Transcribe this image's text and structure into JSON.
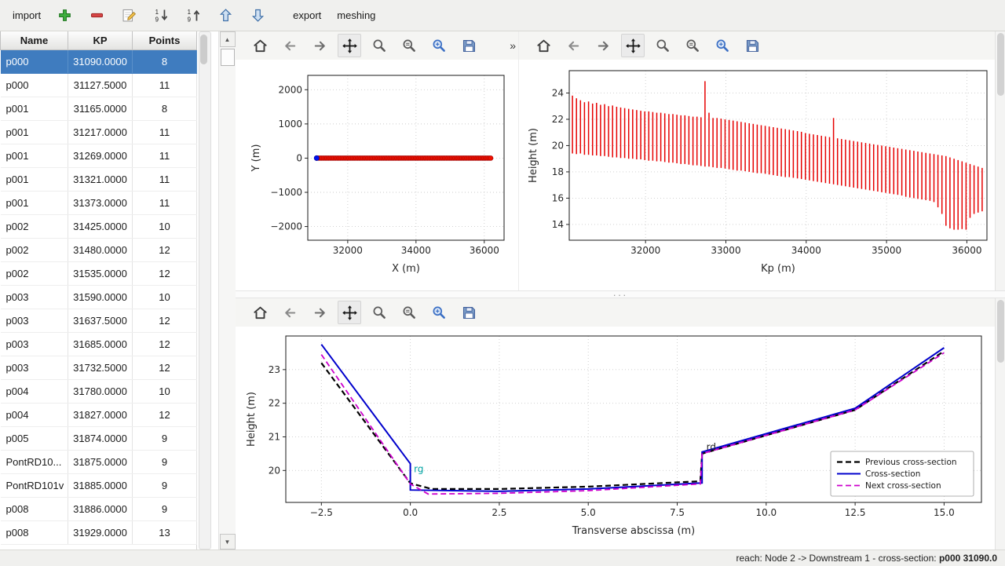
{
  "topbar": {
    "items": [
      {
        "id": "import",
        "type": "text",
        "label": "import"
      },
      {
        "id": "add",
        "type": "icon"
      },
      {
        "id": "remove",
        "type": "icon"
      },
      {
        "id": "edit",
        "type": "icon"
      },
      {
        "id": "sort-asc",
        "type": "icon"
      },
      {
        "id": "sort-desc",
        "type": "icon"
      },
      {
        "id": "move-up",
        "type": "icon"
      },
      {
        "id": "move-down",
        "type": "icon"
      },
      {
        "id": "export",
        "type": "text",
        "label": "export"
      },
      {
        "id": "meshing",
        "type": "text",
        "label": "meshing"
      }
    ]
  },
  "mpl_toolbar": {
    "icons": [
      "home",
      "back",
      "forward",
      "pan",
      "zoom",
      "subplots",
      "customize",
      "save"
    ],
    "overflow_label": "»"
  },
  "scrollbar": {
    "up_glyph": "▲",
    "down_glyph": "▼"
  },
  "splitter": {
    "dots": "···"
  },
  "table": {
    "columns": [
      "Name",
      "KP",
      "Points"
    ],
    "selected_index": 0,
    "rows": [
      [
        "p000",
        "31090.0000",
        "8"
      ],
      [
        "p000",
        "31127.5000",
        "11"
      ],
      [
        "p001",
        "31165.0000",
        "8"
      ],
      [
        "p001",
        "31217.0000",
        "11"
      ],
      [
        "p001",
        "31269.0000",
        "11"
      ],
      [
        "p001",
        "31321.0000",
        "11"
      ],
      [
        "p001",
        "31373.0000",
        "11"
      ],
      [
        "p002",
        "31425.0000",
        "10"
      ],
      [
        "p002",
        "31480.0000",
        "12"
      ],
      [
        "p002",
        "31535.0000",
        "12"
      ],
      [
        "p003",
        "31590.0000",
        "10"
      ],
      [
        "p003",
        "31637.5000",
        "12"
      ],
      [
        "p003",
        "31685.0000",
        "12"
      ],
      [
        "p003",
        "31732.5000",
        "12"
      ],
      [
        "p004",
        "31780.0000",
        "10"
      ],
      [
        "p004",
        "31827.0000",
        "12"
      ],
      [
        "p005",
        "31874.0000",
        "9"
      ],
      [
        "PontRD10...",
        "31875.0000",
        "9"
      ],
      [
        "PontRD101v",
        "31885.0000",
        "9"
      ],
      [
        "p008",
        "31886.0000",
        "9"
      ],
      [
        "p008",
        "31929.0000",
        "13"
      ]
    ]
  },
  "statusbar": {
    "prefix": "reach: Node 2 -> Downstream 1 - cross-section: ",
    "value": "p000 31090.0"
  },
  "kp_list": [
    31090,
    31140,
    31190,
    31240,
    31290,
    31340,
    31390,
    31440,
    31490,
    31540,
    31590,
    31640,
    31690,
    31740,
    31790,
    31840,
    31890,
    31940,
    31990,
    32040,
    32090,
    32140,
    32190,
    32240,
    32290,
    32340,
    32390,
    32440,
    32490,
    32540,
    32590,
    32640,
    32690,
    32740,
    32790,
    32840,
    32890,
    32940,
    32990,
    33040,
    33090,
    33140,
    33190,
    33240,
    33290,
    33340,
    33390,
    33440,
    33490,
    33540,
    33590,
    33640,
    33690,
    33740,
    33790,
    33840,
    33890,
    33940,
    33990,
    34040,
    34090,
    34140,
    34190,
    34240,
    34290,
    34340,
    34390,
    34440,
    34490,
    34540,
    34590,
    34640,
    34690,
    34740,
    34790,
    34840,
    34890,
    34940,
    34990,
    35040,
    35090,
    35140,
    35190,
    35240,
    35290,
    35340,
    35390,
    35440,
    35490,
    35540,
    35590,
    35640,
    35690,
    35740,
    35790,
    35840,
    35890,
    35940,
    35990,
    36040,
    36090,
    36140,
    36190
  ],
  "chart_data": [
    {
      "type": "scatter",
      "name": "plan-view-plot",
      "title": "",
      "xlabel": "X (m)",
      "ylabel": "Y (m)",
      "xlim": [
        30830,
        36580
      ],
      "ylim": [
        -2400,
        2420
      ],
      "xticks": [
        32000,
        34000,
        36000
      ],
      "xtick_labels": [
        "32000",
        "34000",
        "36000"
      ],
      "yticks": [
        -2000,
        -1000,
        0,
        1000,
        2000
      ],
      "ytick_labels": [
        "−2000",
        "−1000",
        "0",
        "1000",
        "2000"
      ],
      "grid": true,
      "series": [
        {
          "name": "cross-sections",
          "marker": "o",
          "color": "#ee1100",
          "edge": "#a00000",
          "size": 3,
          "x": "kp_list",
          "y_const": 0
        },
        {
          "name": "selected-cross-section",
          "marker": "o",
          "color": "#0010ee",
          "edge": "#000a99",
          "size": 3.2,
          "x": [
            31090
          ],
          "y": [
            0
          ]
        }
      ]
    },
    {
      "type": "bar",
      "bar_style": "vertical-range",
      "name": "longitudinal-profile-plot",
      "title": "",
      "xlabel": "Kp (m)",
      "ylabel": "Height (m)",
      "xlim": [
        31050,
        36250
      ],
      "ylim": [
        12.8,
        25.7
      ],
      "xticks": [
        32000,
        33000,
        34000,
        35000,
        36000
      ],
      "xtick_labels": [
        "32000",
        "33000",
        "34000",
        "35000",
        "36000"
      ],
      "yticks": [
        14,
        16,
        18,
        20,
        22,
        24
      ],
      "ytick_labels": [
        "14",
        "16",
        "18",
        "20",
        "22",
        "24"
      ],
      "grid": true,
      "series": [
        {
          "name": "cross-section height extents",
          "color": "#e60000",
          "width": 1.5,
          "x": "kp_list",
          "ymax": [
            23.8,
            23.6,
            23.45,
            23.3,
            23.35,
            23.2,
            23.25,
            23.1,
            23.15,
            23.0,
            23.05,
            22.95,
            22.9,
            22.85,
            22.8,
            22.75,
            22.7,
            22.65,
            22.6,
            22.6,
            22.55,
            22.5,
            22.5,
            22.45,
            22.4,
            22.4,
            22.35,
            22.3,
            22.3,
            22.25,
            22.2,
            22.2,
            22.15,
            24.9,
            22.5,
            22.1,
            22.1,
            22.05,
            22.0,
            21.95,
            21.9,
            21.85,
            21.8,
            21.75,
            21.7,
            21.65,
            21.6,
            21.55,
            21.5,
            21.45,
            21.4,
            21.35,
            21.3,
            21.25,
            21.2,
            21.15,
            21.1,
            21.05,
            20.95,
            20.9,
            20.85,
            20.8,
            20.75,
            20.7,
            20.65,
            22.1,
            20.55,
            20.5,
            20.45,
            20.4,
            20.35,
            20.3,
            20.25,
            20.2,
            20.15,
            20.1,
            20.05,
            20.0,
            19.95,
            19.9,
            19.85,
            19.8,
            19.75,
            19.7,
            19.65,
            19.6,
            19.55,
            19.5,
            19.45,
            19.4,
            19.35,
            19.3,
            19.25,
            19.2,
            19.1,
            19.0,
            18.9,
            18.8,
            18.7,
            18.6,
            18.5,
            18.4,
            18.3
          ],
          "ymin": [
            19.4,
            19.35,
            19.4,
            19.3,
            19.3,
            19.25,
            19.25,
            19.2,
            19.2,
            19.15,
            19.1,
            19.1,
            19.05,
            19.05,
            19.0,
            19.0,
            18.95,
            18.95,
            18.9,
            18.85,
            18.85,
            18.8,
            18.8,
            18.75,
            18.7,
            18.7,
            18.65,
            18.6,
            18.6,
            18.55,
            18.5,
            18.5,
            18.45,
            18.4,
            18.4,
            18.35,
            18.3,
            18.3,
            18.25,
            18.2,
            18.15,
            18.1,
            18.1,
            18.05,
            18.0,
            17.95,
            17.9,
            17.9,
            17.85,
            17.8,
            17.75,
            17.7,
            17.65,
            17.6,
            17.6,
            17.55,
            17.5,
            17.45,
            17.4,
            17.35,
            17.3,
            17.25,
            17.2,
            17.15,
            17.1,
            17.05,
            17.0,
            16.95,
            16.9,
            16.85,
            16.8,
            16.75,
            16.7,
            16.65,
            16.6,
            16.55,
            16.5,
            16.45,
            16.4,
            16.35,
            16.3,
            16.25,
            16.2,
            16.1,
            16.05,
            16.0,
            15.95,
            15.9,
            15.85,
            15.8,
            15.7,
            15.3,
            14.8,
            13.9,
            13.7,
            13.6,
            13.6,
            13.65,
            13.6,
            14.5,
            14.8,
            14.9,
            15.0
          ]
        }
      ]
    },
    {
      "type": "line",
      "name": "cross-section-plot",
      "title": "",
      "xlabel": "Transverse abscissa (m)",
      "ylabel": "Height (m)",
      "xlim": [
        -3.5,
        16.05
      ],
      "ylim": [
        19.05,
        24.0
      ],
      "xticks": [
        -2.5,
        0.0,
        2.5,
        5.0,
        7.5,
        10.0,
        12.5,
        15.0
      ],
      "xtick_labels": [
        "−2.5",
        "0.0",
        "2.5",
        "5.0",
        "7.5",
        "10.0",
        "12.5",
        "15.0"
      ],
      "yticks": [
        20,
        21,
        22,
        23
      ],
      "ytick_labels": [
        "20",
        "21",
        "22",
        "23"
      ],
      "grid": true,
      "legend": {
        "position": "lower right"
      },
      "series": [
        {
          "name": "Previous cross-section",
          "color": "#000000",
          "dash": "7 4",
          "width": 2.2,
          "x": [
            -2.5,
            0.0,
            0.6,
            2.5,
            5.0,
            8.15,
            8.2,
            12.5,
            15.0
          ],
          "y": [
            23.2,
            19.62,
            19.45,
            19.45,
            19.52,
            19.68,
            20.5,
            21.8,
            23.55
          ]
        },
        {
          "name": "Cross-section",
          "color": "#0000cc",
          "width": 2,
          "x": [
            -2.5,
            0.0,
            0.0,
            2.5,
            5.0,
            8.2,
            8.2,
            12.5,
            15.0
          ],
          "y": [
            23.75,
            20.2,
            19.42,
            19.38,
            19.45,
            19.63,
            20.55,
            21.85,
            23.65
          ]
        },
        {
          "name": "Next cross-section",
          "color": "#cc00cc",
          "dash": "7 4",
          "width": 1.8,
          "x": [
            -2.5,
            0.0,
            0.5,
            2.5,
            5.0,
            8.15,
            8.2,
            12.5,
            15.0
          ],
          "y": [
            23.45,
            19.6,
            19.3,
            19.32,
            19.4,
            19.6,
            20.5,
            21.8,
            23.5
          ]
        }
      ],
      "annotations": [
        {
          "text": "rg",
          "x": 0.1,
          "y": 19.95,
          "color": "#00a3a3"
        },
        {
          "text": "rd",
          "x": 8.32,
          "y": 20.6,
          "color": "#222222"
        }
      ]
    }
  ]
}
